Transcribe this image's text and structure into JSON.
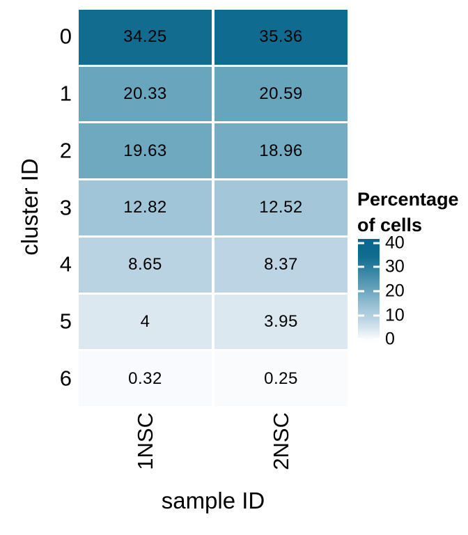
{
  "chart_data": {
    "type": "heatmap",
    "title": "",
    "xlabel": "sample ID",
    "ylabel": "cluster ID",
    "columns": [
      "1NSC",
      "2NSC"
    ],
    "row_labels": [
      "0",
      "1",
      "2",
      "3",
      "4",
      "5",
      "6"
    ],
    "rows": [
      {
        "cluster": "0",
        "cells": [
          {
            "column": "1NSC",
            "value": 34.25,
            "label": "34.25"
          },
          {
            "column": "2NSC",
            "value": 35.36,
            "label": "35.36"
          }
        ]
      },
      {
        "cluster": "1",
        "cells": [
          {
            "column": "1NSC",
            "value": 20.33,
            "label": "20.33"
          },
          {
            "column": "2NSC",
            "value": 20.59,
            "label": "20.59"
          }
        ]
      },
      {
        "cluster": "2",
        "cells": [
          {
            "column": "1NSC",
            "value": 19.63,
            "label": "19.63"
          },
          {
            "column": "2NSC",
            "value": 18.96,
            "label": "18.96"
          }
        ]
      },
      {
        "cluster": "3",
        "cells": [
          {
            "column": "1NSC",
            "value": 12.82,
            "label": "12.82"
          },
          {
            "column": "2NSC",
            "value": 12.52,
            "label": "12.52"
          }
        ]
      },
      {
        "cluster": "4",
        "cells": [
          {
            "column": "1NSC",
            "value": 8.65,
            "label": "8.65"
          },
          {
            "column": "2NSC",
            "value": 8.37,
            "label": "8.37"
          }
        ]
      },
      {
        "cluster": "5",
        "cells": [
          {
            "column": "1NSC",
            "value": 4,
            "label": "4"
          },
          {
            "column": "2NSC",
            "value": 3.95,
            "label": "3.95"
          }
        ]
      },
      {
        "cluster": "6",
        "cells": [
          {
            "column": "1NSC",
            "value": 0.32,
            "label": "0.32"
          },
          {
            "column": "2NSC",
            "value": 0.25,
            "label": "0.25"
          }
        ]
      }
    ],
    "legend": {
      "title_line1": "Percentage",
      "title_line2": "of cells",
      "ticks": [
        40,
        30,
        20,
        10,
        0
      ],
      "bar_domain_top": 41.7,
      "bar_domain_bottom": -1.7
    },
    "color_scale": {
      "low_label": "0",
      "high_label": "40",
      "stops": [
        {
          "value": -1.7,
          "color": "#FFFFFF"
        },
        {
          "value": 0,
          "color": "#FBFCFE"
        },
        {
          "value": 4,
          "color": "#DBE8F0"
        },
        {
          "value": 8.65,
          "color": "#BAD3E2"
        },
        {
          "value": 12.82,
          "color": "#A1C5D8"
        },
        {
          "value": 20.33,
          "color": "#69A6BE"
        },
        {
          "value": 34.25,
          "color": "#116C90"
        },
        {
          "value": 41.7,
          "color": "#086690"
        }
      ]
    },
    "layout": {
      "grid_gap_color": "#FFFFFF",
      "text_color": "#000000"
    }
  }
}
